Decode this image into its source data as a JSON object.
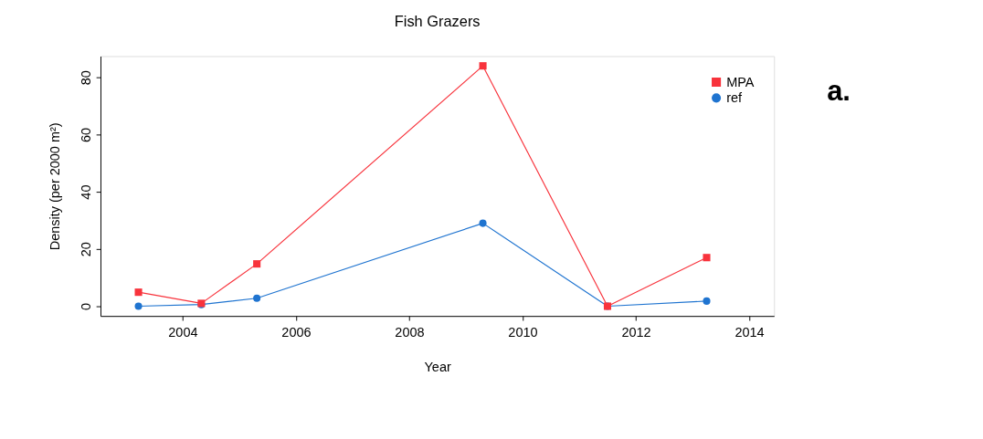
{
  "chart_data": {
    "type": "line",
    "title": "Fish Grazers",
    "xlabel": "Year",
    "ylabel": "Density (per 2000 m²)",
    "annotations": [
      "a."
    ],
    "xlim": [
      2002.55,
      2014.44
    ],
    "xticks": [
      2004,
      2006,
      2008,
      2010,
      2012,
      2014
    ],
    "ylim": [
      -3.4,
      87.4
    ],
    "yticks": [
      0,
      20,
      40,
      60,
      80
    ],
    "x": [
      2003.22,
      2004.33,
      2005.31,
      2009.3,
      2011.5,
      2013.25
    ],
    "series": [
      {
        "name": "MPA",
        "color": "#f8333c",
        "marker": "square",
        "values": [
          4.9,
          1,
          14.8,
          84,
          0,
          17
        ]
      },
      {
        "name": "ref",
        "color": "#1f74d0",
        "marker": "circle",
        "values": [
          0,
          0.6,
          2.8,
          29,
          0,
          1.8
        ]
      }
    ],
    "legend": "top right",
    "grid": false,
    "line_style": "solid"
  }
}
